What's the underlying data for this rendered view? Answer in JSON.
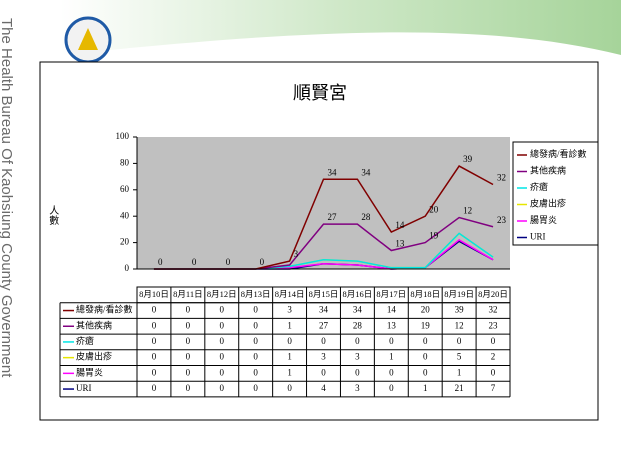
{
  "organization": "The Health Bureau Of Kaohsiung County Government",
  "chart_data": {
    "type": "line",
    "stacked": true,
    "title": "順賢宮",
    "ylabel": "人數",
    "categories": [
      "8月10日",
      "8月11日",
      "8月12日",
      "8月13日",
      "8月14日",
      "8月15日",
      "8月16日",
      "8月17日",
      "8月18日",
      "8月19日",
      "8月20日"
    ],
    "series": [
      {
        "name": "總發病/看診數",
        "color": "#800000",
        "values": [
          0,
          0,
          0,
          0,
          3,
          34,
          34,
          14,
          20,
          39,
          32
        ]
      },
      {
        "name": "其他疾病",
        "color": "#800080",
        "values": [
          0,
          0,
          0,
          0,
          1,
          27,
          28,
          13,
          19,
          12,
          23
        ]
      },
      {
        "name": "疥瘡",
        "color": "#00e5e5",
        "values": [
          0,
          0,
          0,
          0,
          0,
          0,
          0,
          0,
          0,
          0,
          0
        ]
      },
      {
        "name": "皮膚出疹",
        "color": "#e6e600",
        "values": [
          0,
          0,
          0,
          0,
          1,
          3,
          3,
          1,
          0,
          5,
          2
        ]
      },
      {
        "name": "腸胃炎",
        "color": "#ff00ff",
        "values": [
          0,
          0,
          0,
          0,
          1,
          0,
          0,
          0,
          0,
          1,
          0
        ]
      },
      {
        "name": "URI",
        "color": "#000080",
        "values": [
          0,
          0,
          0,
          0,
          0,
          4,
          3,
          0,
          1,
          21,
          7
        ]
      }
    ],
    "ylim": [
      0,
      100
    ],
    "yticks": [
      0,
      20,
      40,
      60,
      80,
      100
    ],
    "legend": "right",
    "data_table": true
  }
}
